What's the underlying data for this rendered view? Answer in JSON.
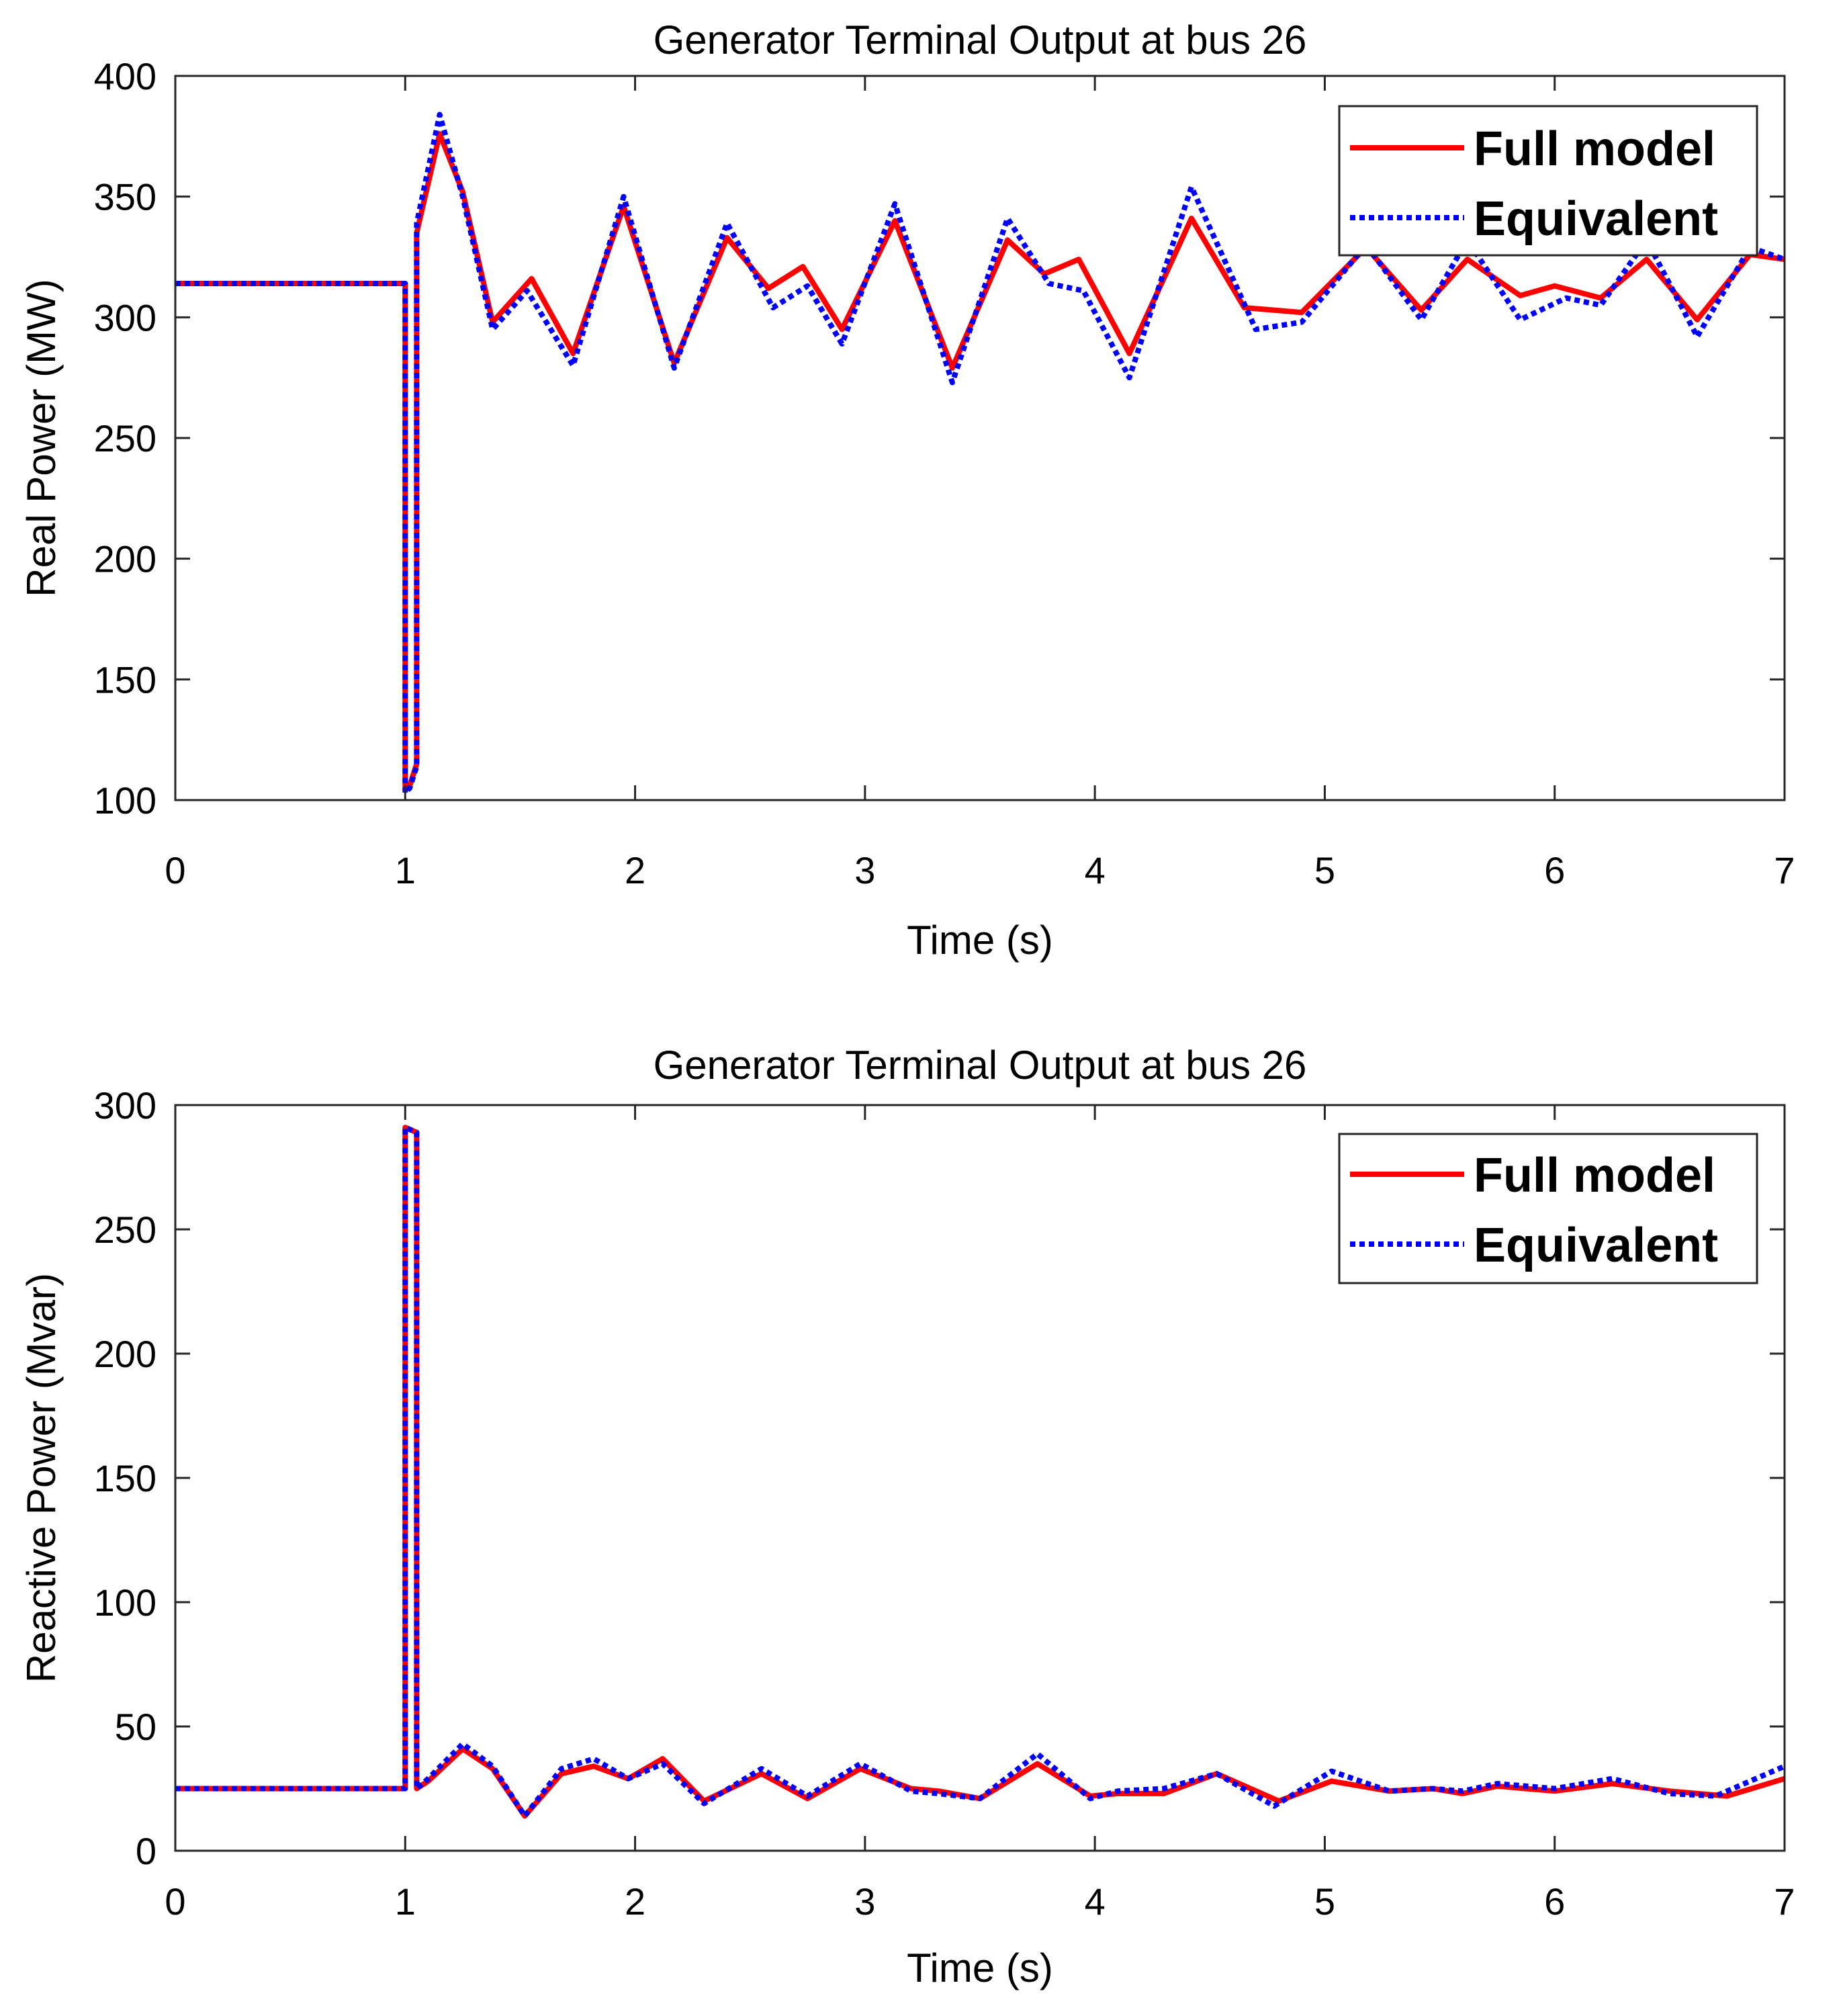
{
  "colors": {
    "full_model": "#ff0000",
    "equivalent": "#0000ff",
    "axes": "#262626",
    "background": "#ffffff"
  },
  "chart_data": [
    {
      "type": "line",
      "title": "Generator Terminal Output at bus 26",
      "xlabel": "Time (s)",
      "ylabel": "Real Power (MW)",
      "xlim": [
        0,
        7
      ],
      "ylim": [
        100,
        400
      ],
      "xticks": [
        "0",
        "1",
        "2",
        "3",
        "4",
        "5",
        "6",
        "7"
      ],
      "yticks": [
        "100",
        "150",
        "200",
        "250",
        "300",
        "350",
        "400"
      ],
      "grid": false,
      "legend_position": "top-right",
      "series": [
        {
          "name": "Full model",
          "style": "solid",
          "x": [
            0,
            1.0,
            1.0,
            1.02,
            1.05,
            1.05,
            1.15,
            1.25,
            1.38,
            1.55,
            1.73,
            1.95,
            2.17,
            2.4,
            2.58,
            2.73,
            2.9,
            3.13,
            3.38,
            3.62,
            3.78,
            3.93,
            4.15,
            4.42,
            4.65,
            4.9,
            5.18,
            5.42,
            5.62,
            5.85,
            6.0,
            6.2,
            6.4,
            6.62,
            6.85,
            7.0
          ],
          "y": [
            314,
            314,
            104,
            106,
            115,
            335,
            376,
            352,
            298,
            316,
            285,
            346,
            281,
            333,
            312,
            321,
            295,
            340,
            279,
            332,
            318,
            324,
            285,
            341,
            304,
            302,
            329,
            303,
            324,
            309,
            313,
            308,
            324,
            299,
            326,
            324
          ]
        },
        {
          "name": "Equivalent",
          "style": "dotted",
          "x": [
            0,
            1.0,
            1.0,
            1.02,
            1.05,
            1.05,
            1.15,
            1.25,
            1.38,
            1.53,
            1.73,
            1.95,
            2.17,
            2.4,
            2.6,
            2.75,
            2.9,
            3.13,
            3.38,
            3.62,
            3.8,
            3.95,
            4.15,
            4.42,
            4.7,
            4.9,
            5.18,
            5.42,
            5.62,
            5.85,
            6.05,
            6.2,
            6.4,
            6.62,
            6.85,
            7.0
          ],
          "y": [
            314,
            314,
            103,
            105,
            114,
            339,
            384,
            350,
            295,
            311,
            280,
            350,
            279,
            339,
            304,
            313,
            289,
            347,
            273,
            341,
            314,
            311,
            275,
            354,
            295,
            298,
            330,
            299,
            332,
            299,
            308,
            305,
            332,
            292,
            329,
            324
          ]
        }
      ]
    },
    {
      "type": "line",
      "title": "Generator Terminal Output at bus 26",
      "xlabel": "Time (s)",
      "ylabel": "Reactive Power (Mvar)",
      "xlim": [
        0,
        7
      ],
      "ylim": [
        0,
        300
      ],
      "xticks": [
        "0",
        "1",
        "2",
        "3",
        "4",
        "5",
        "6",
        "7"
      ],
      "yticks": [
        "0",
        "50",
        "100",
        "150",
        "200",
        "250",
        "300"
      ],
      "grid": false,
      "legend_position": "top-right",
      "series": [
        {
          "name": "Full model",
          "style": "solid",
          "x": [
            0,
            1.0,
            1.0,
            1.05,
            1.05,
            1.1,
            1.25,
            1.38,
            1.52,
            1.68,
            1.82,
            1.97,
            2.12,
            2.3,
            2.55,
            2.75,
            2.98,
            3.2,
            3.32,
            3.5,
            3.75,
            3.98,
            4.1,
            4.3,
            4.53,
            4.8,
            5.03,
            5.28,
            5.47,
            5.6,
            5.75,
            6.0,
            6.25,
            6.5,
            6.75,
            7.0
          ],
          "y": [
            25,
            25,
            291,
            289,
            25,
            28,
            41,
            33,
            14,
            31,
            34,
            29,
            37,
            20,
            31,
            21,
            33,
            25,
            24,
            21,
            35,
            22,
            23,
            23,
            31,
            20,
            28,
            24,
            25,
            23,
            26,
            24,
            27,
            24,
            22,
            29
          ]
        },
        {
          "name": "Equivalent",
          "style": "dotted",
          "x": [
            0,
            1.0,
            1.0,
            1.05,
            1.05,
            1.1,
            1.25,
            1.38,
            1.52,
            1.68,
            1.82,
            1.97,
            2.12,
            2.3,
            2.55,
            2.75,
            2.98,
            3.2,
            3.32,
            3.5,
            3.75,
            3.98,
            4.1,
            4.3,
            4.53,
            4.78,
            5.03,
            5.28,
            5.47,
            5.6,
            5.75,
            6.0,
            6.25,
            6.5,
            6.7,
            7.0
          ],
          "y": [
            25,
            25,
            291,
            289,
            25,
            29,
            43,
            34,
            14,
            33,
            37,
            29,
            35,
            19,
            33,
            22,
            35,
            24,
            23,
            21,
            39,
            21,
            24,
            25,
            31,
            18,
            32,
            24,
            25,
            24,
            27,
            25,
            29,
            23,
            22,
            34
          ]
        }
      ]
    }
  ]
}
